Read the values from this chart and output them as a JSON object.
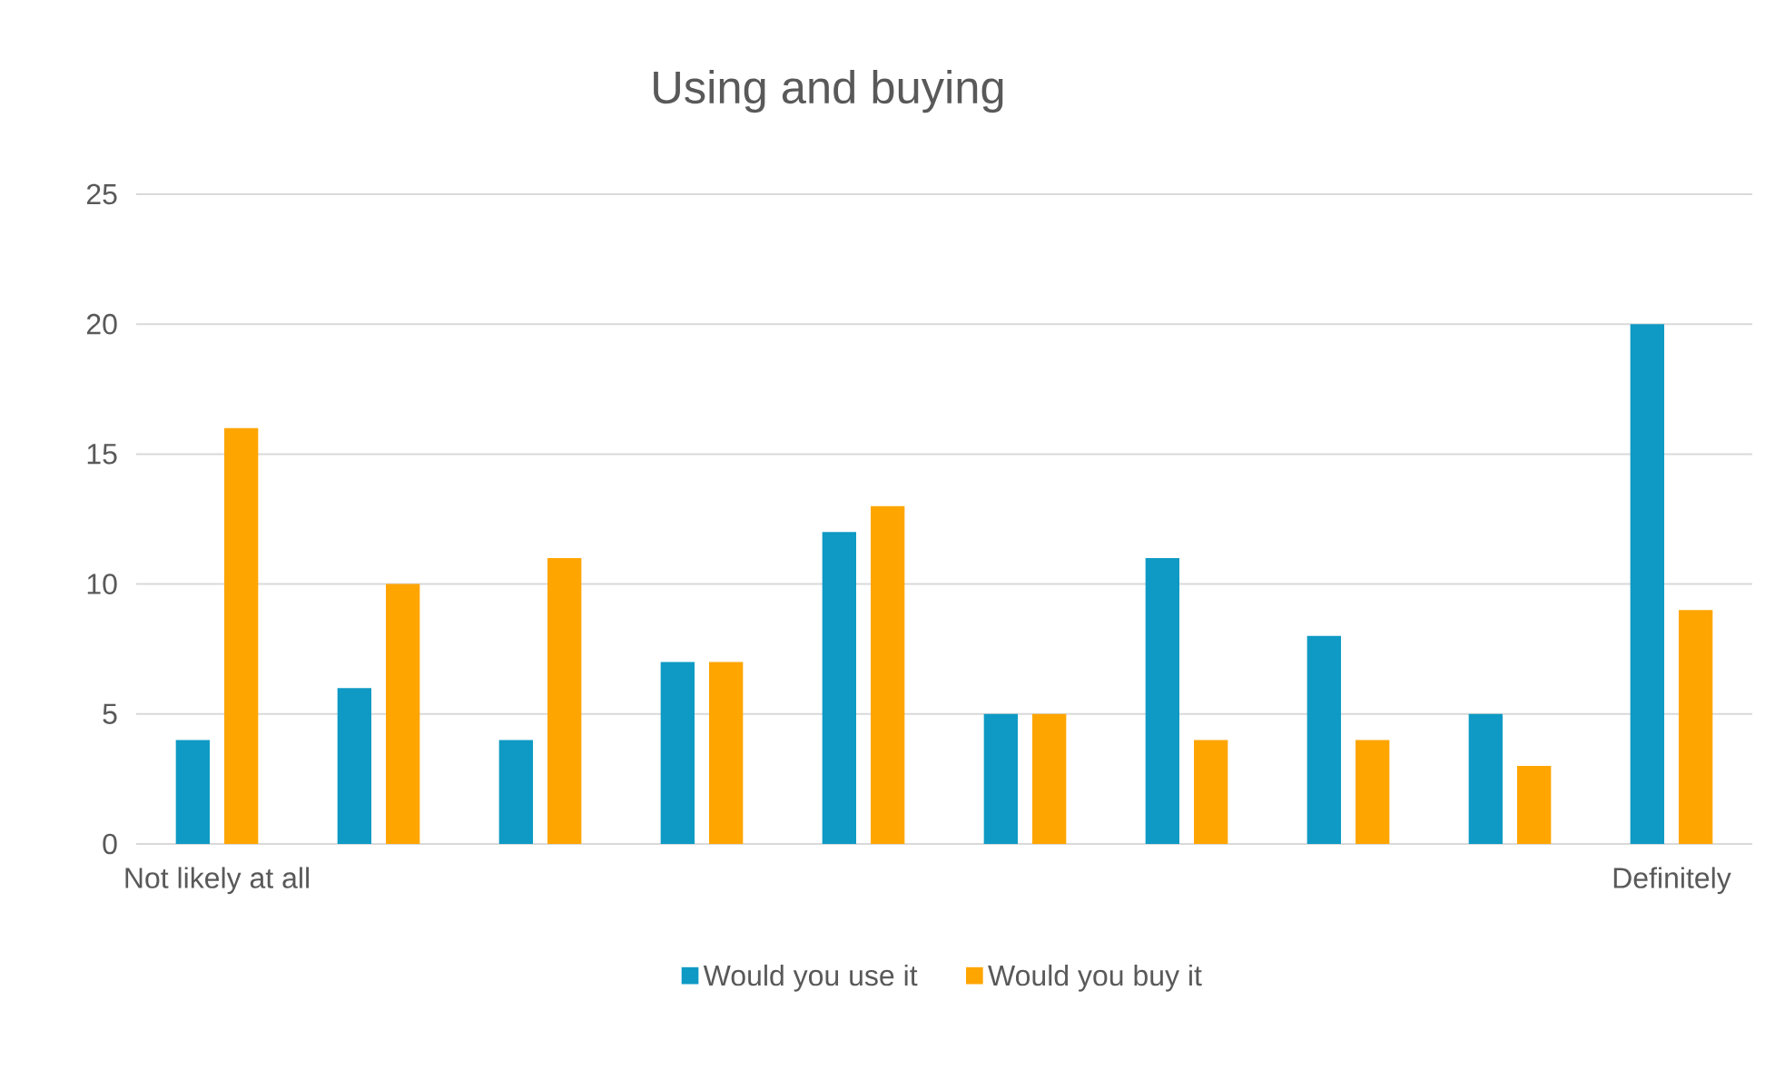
{
  "chart_data": {
    "type": "bar",
    "title": "Using and buying",
    "categories": [
      "Not likely at all",
      null,
      null,
      null,
      null,
      null,
      null,
      null,
      null,
      "Definitely"
    ],
    "series": [
      {
        "name": "Would you use it",
        "color": "#0e9ac4",
        "values": [
          4,
          6,
          4,
          7,
          12,
          5,
          11,
          8,
          5,
          20
        ]
      },
      {
        "name": "Would you buy it",
        "color": "#ffa500",
        "values": [
          16,
          10,
          11,
          7,
          13,
          5,
          4,
          4,
          3,
          9
        ]
      }
    ],
    "ylim": [
      0,
      25
    ],
    "yticks": [
      0,
      5,
      10,
      15,
      20,
      25
    ],
    "grid": "y",
    "legend": "bottom"
  }
}
